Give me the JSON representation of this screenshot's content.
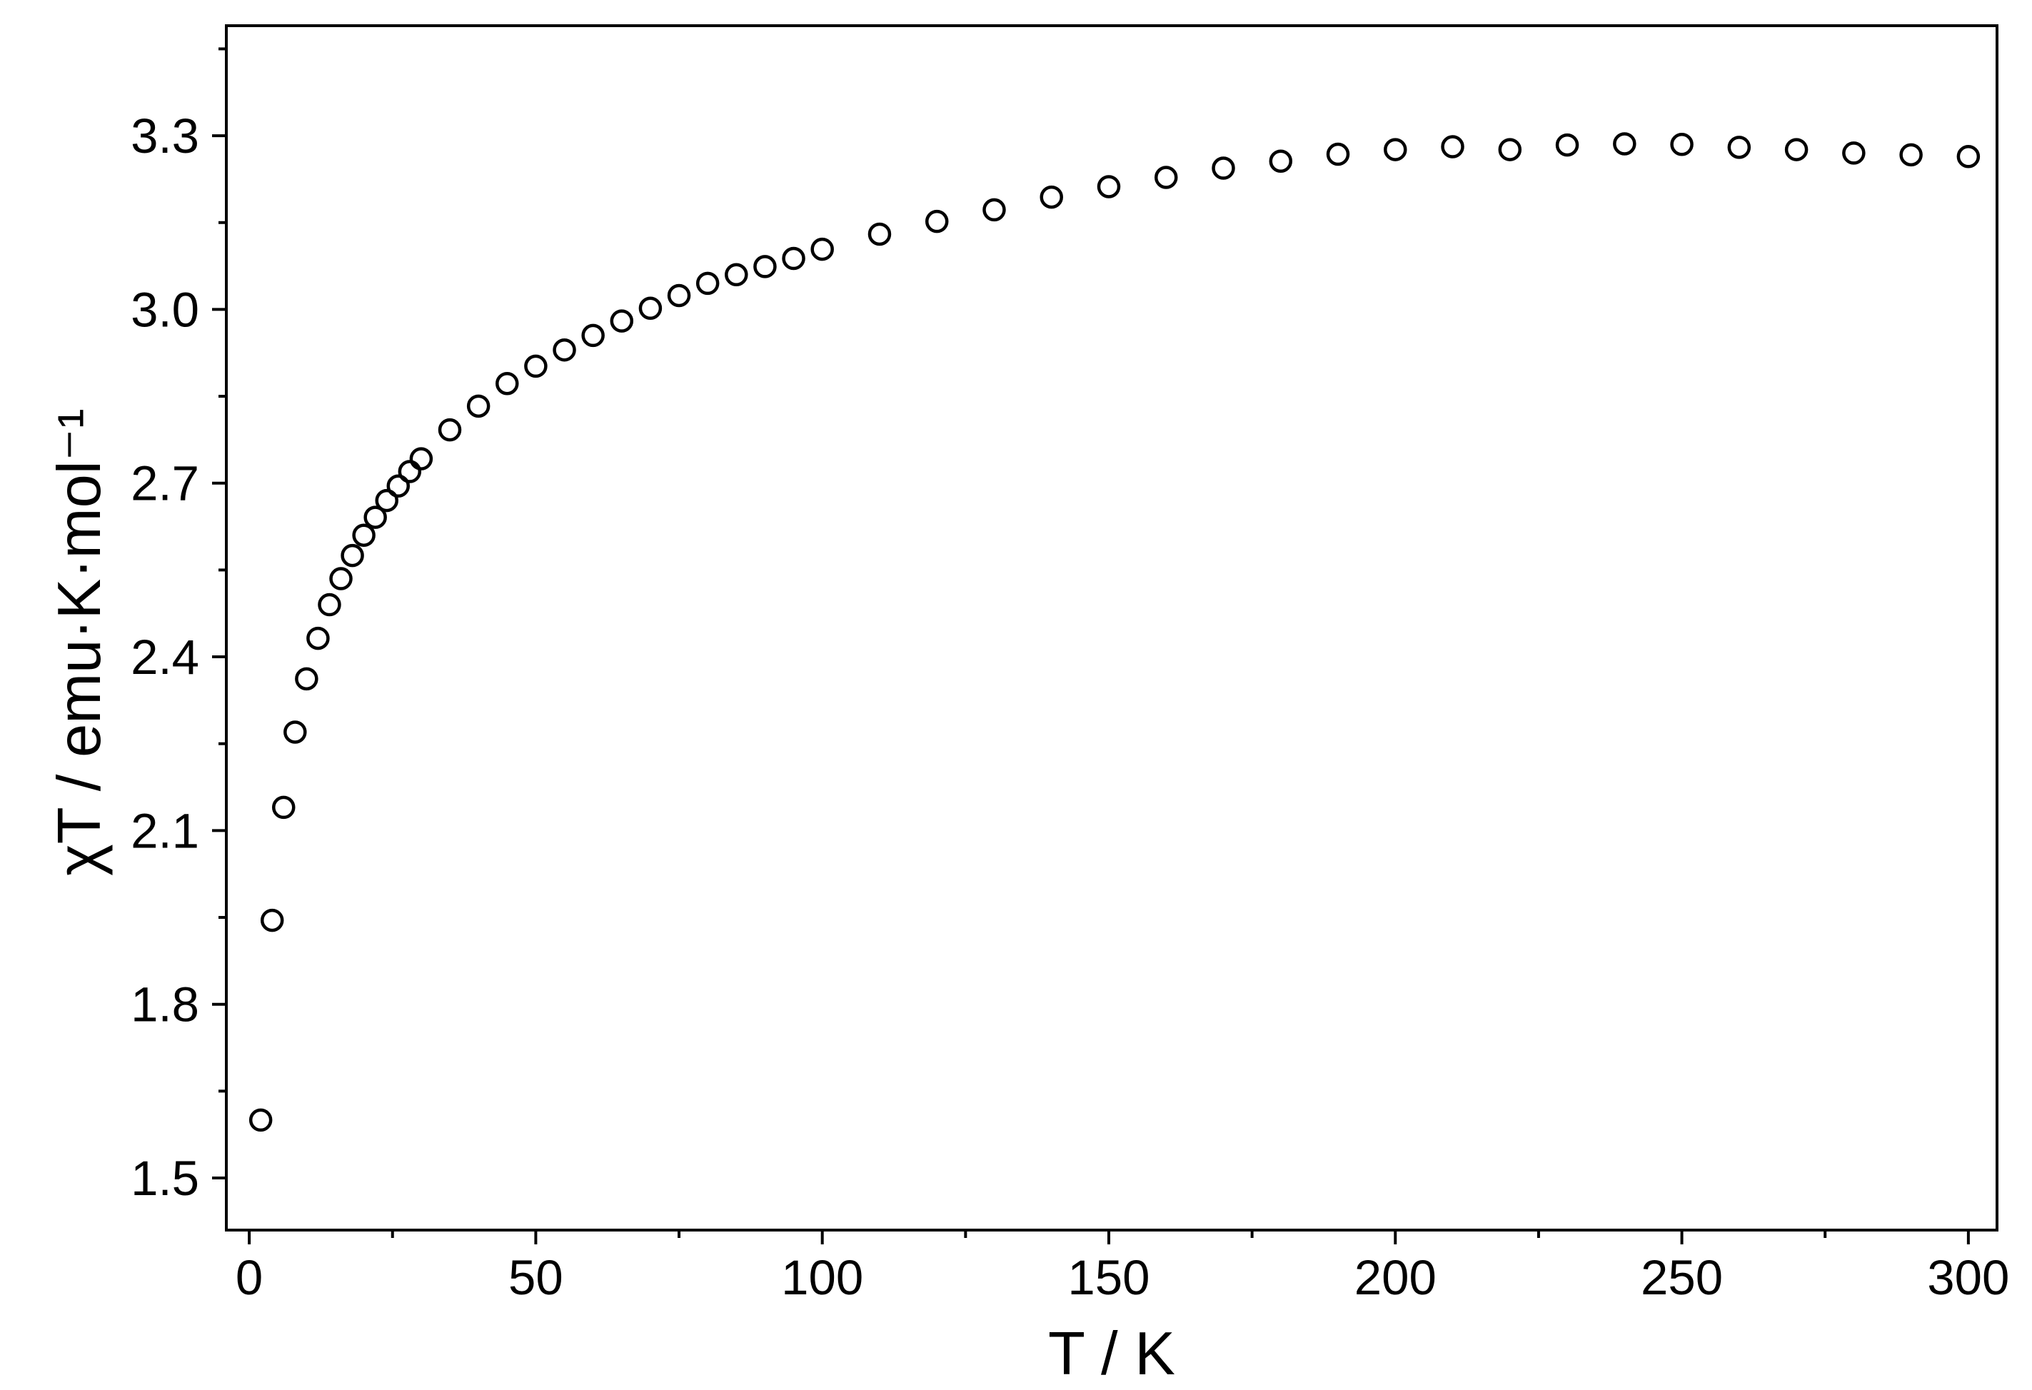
{
  "chart_data": {
    "type": "scatter",
    "xlabel": "T / K",
    "ylabel": "χT / emu·K·mol⁻¹",
    "xlim": [
      -4,
      305
    ],
    "ylim": [
      1.41,
      3.49
    ],
    "x_ticks": [
      "0",
      "50",
      "100",
      "150",
      "200",
      "250",
      "300"
    ],
    "y_ticks": [
      "1.5",
      "1.8",
      "2.1",
      "2.4",
      "2.7",
      "3.0",
      "3.3"
    ],
    "grid": false,
    "marker": "open-circle",
    "marker_color": "#000000",
    "series": [
      {
        "x": [
          2,
          4,
          6,
          8,
          10,
          12,
          14,
          16,
          18,
          20,
          22,
          24,
          26,
          28,
          30,
          35,
          40,
          45,
          50,
          55,
          60,
          65,
          70,
          75,
          80,
          85,
          90,
          95,
          100,
          110,
          120,
          130,
          140,
          150,
          160,
          170,
          180,
          190,
          200,
          210,
          220,
          230,
          240,
          250,
          260,
          270,
          280,
          290,
          300
        ],
        "y": [
          1.6,
          1.945,
          2.14,
          2.27,
          2.362,
          2.432,
          2.49,
          2.535,
          2.575,
          2.61,
          2.641,
          2.67,
          2.695,
          2.72,
          2.742,
          2.792,
          2.833,
          2.872,
          2.902,
          2.93,
          2.955,
          2.98,
          3.002,
          3.024,
          3.045,
          3.06,
          3.074,
          3.088,
          3.104,
          3.13,
          3.152,
          3.172,
          3.194,
          3.212,
          3.228,
          3.244,
          3.256,
          3.268,
          3.276,
          3.281,
          3.276,
          3.284,
          3.286,
          3.285,
          3.28,
          3.276,
          3.27,
          3.267,
          3.264
        ]
      }
    ]
  }
}
